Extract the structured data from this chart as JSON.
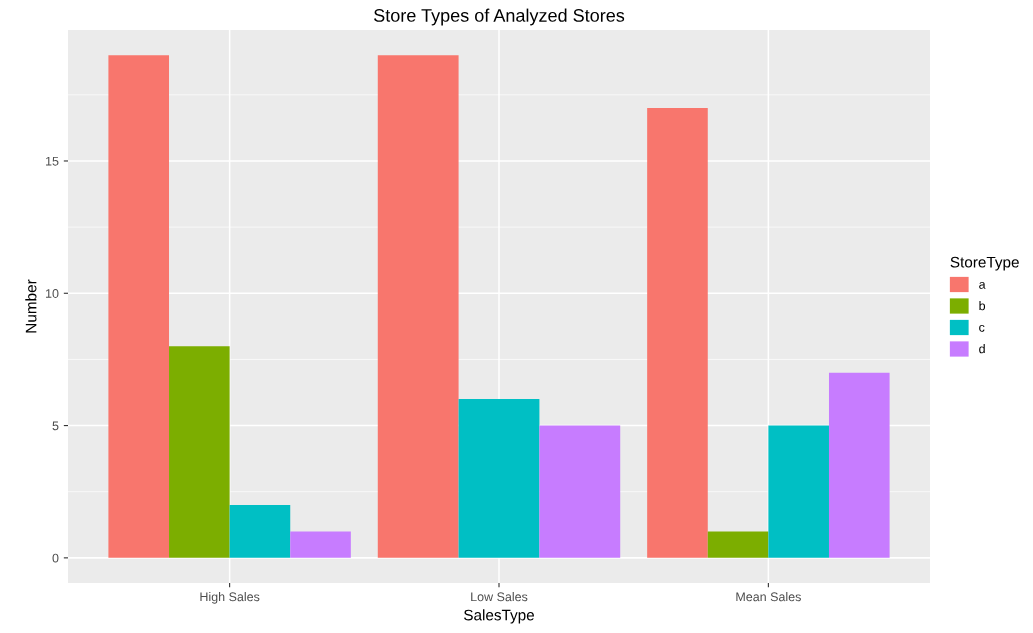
{
  "chart_data": {
    "type": "bar",
    "title": "Store Types of Analyzed Stores",
    "xlabel": "SalesType",
    "ylabel": "Number",
    "legend_title": "StoreType",
    "categories": [
      "High Sales",
      "Low Sales",
      "Mean Sales"
    ],
    "series": [
      {
        "name": "a",
        "color": "#f8766d",
        "values": [
          19,
          19,
          17
        ]
      },
      {
        "name": "b",
        "color": "#7cae00",
        "values": [
          8,
          null,
          1
        ]
      },
      {
        "name": "c",
        "color": "#00bfc4",
        "values": [
          2,
          6,
          5
        ]
      },
      {
        "name": "d",
        "color": "#c77cff",
        "values": [
          1,
          5,
          7
        ]
      }
    ],
    "ylim": [
      -0.95,
      19.95
    ],
    "yticks": [
      0,
      5,
      10,
      15
    ],
    "grid": true,
    "legend": "right"
  }
}
